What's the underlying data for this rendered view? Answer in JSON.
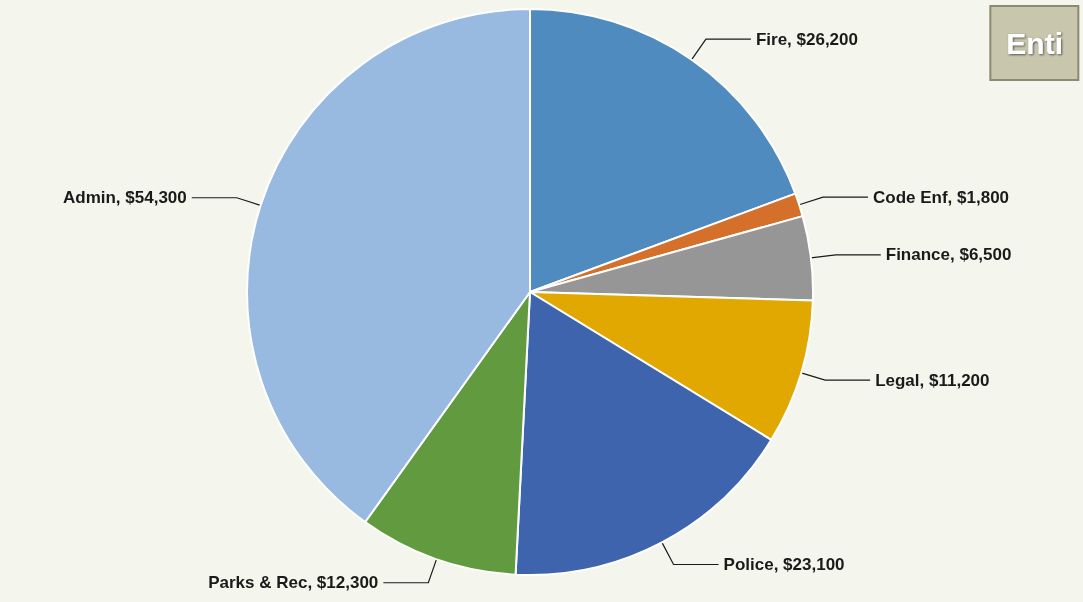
{
  "chart_data": {
    "type": "pie",
    "title": "Enti",
    "categories": [
      "Fire",
      "Code Enf",
      "Finance",
      "Legal",
      "Police",
      "Parks & Rec",
      "Admin"
    ],
    "values": [
      26200,
      1800,
      6500,
      11200,
      23100,
      12300,
      54300
    ],
    "value_labels": [
      "$26,200",
      "$1,800",
      "$6,500",
      "$11,200",
      "$23,100",
      "$12,300",
      "$54,300"
    ],
    "colors": [
      "#4f8bbf",
      "#d4702a",
      "#969696",
      "#e0a800",
      "#3e64ad",
      "#629b3f",
      "#98b9e0"
    ]
  }
}
